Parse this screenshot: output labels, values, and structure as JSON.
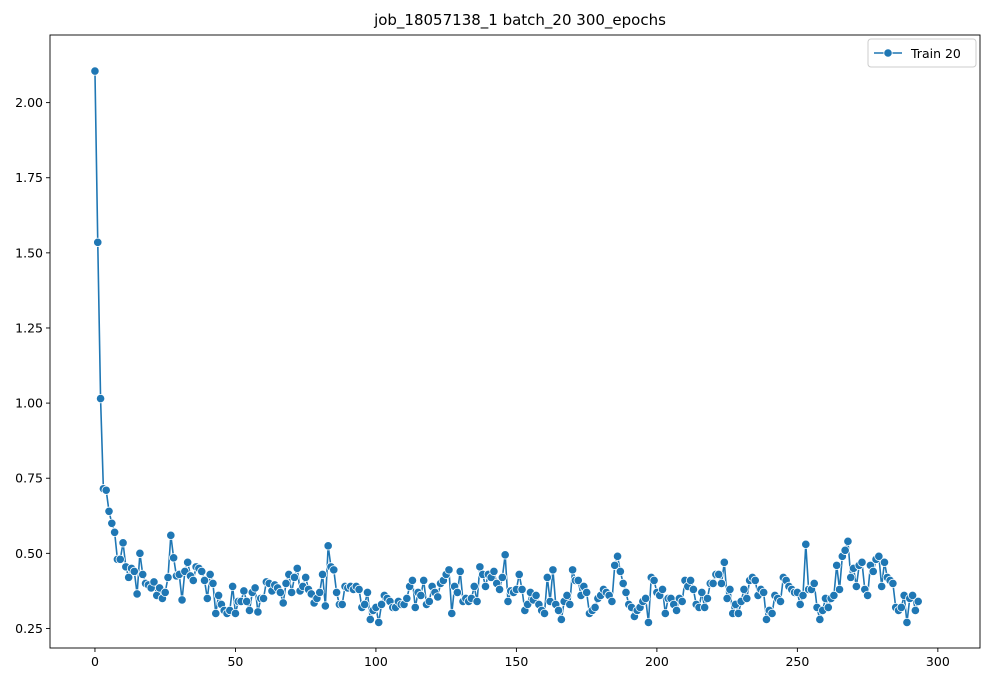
{
  "chart_data": {
    "type": "line",
    "title": "job_18057138_1 batch_20 300_epochs",
    "xlabel": "",
    "ylabel": "",
    "xlim": [
      -16,
      315
    ],
    "ylim": [
      0.185,
      2.225
    ],
    "x_ticks": [
      0,
      50,
      100,
      150,
      200,
      250,
      300
    ],
    "y_ticks": [
      0.25,
      0.5,
      0.75,
      1.0,
      1.25,
      1.5,
      1.75,
      2.0
    ],
    "y_tick_labels": [
      "0.25",
      "0.50",
      "0.75",
      "1.00",
      "1.25",
      "1.50",
      "1.75",
      "2.00"
    ],
    "grid": false,
    "legend_position": "top-right",
    "series": [
      {
        "name": "Train 20",
        "color": "#1f77b4",
        "marker": "circle",
        "values": [
          2.105,
          1.535,
          1.015,
          0.715,
          0.71,
          0.64,
          0.6,
          0.57,
          0.48,
          0.48,
          0.535,
          0.455,
          0.42,
          0.45,
          0.44,
          0.365,
          0.5,
          0.43,
          0.4,
          0.395,
          0.385,
          0.405,
          0.36,
          0.385,
          0.35,
          0.37,
          0.42,
          0.56,
          0.485,
          0.425,
          0.43,
          0.345,
          0.44,
          0.47,
          0.425,
          0.41,
          0.455,
          0.45,
          0.44,
          0.41,
          0.35,
          0.43,
          0.4,
          0.3,
          0.36,
          0.33,
          0.31,
          0.3,
          0.31,
          0.39,
          0.3,
          0.34,
          0.34,
          0.375,
          0.34,
          0.31,
          0.37,
          0.385,
          0.305,
          0.35,
          0.35,
          0.405,
          0.4,
          0.375,
          0.395,
          0.385,
          0.37,
          0.335,
          0.4,
          0.43,
          0.37,
          0.42,
          0.45,
          0.375,
          0.39,
          0.42,
          0.38,
          0.365,
          0.335,
          0.35,
          0.37,
          0.43,
          0.325,
          0.525,
          0.455,
          0.445,
          0.37,
          0.33,
          0.33,
          0.39,
          0.385,
          0.39,
          0.38,
          0.39,
          0.38,
          0.32,
          0.33,
          0.37,
          0.28,
          0.31,
          0.32,
          0.27,
          0.33,
          0.36,
          0.35,
          0.34,
          0.32,
          0.32,
          0.34,
          0.33,
          0.33,
          0.35,
          0.39,
          0.41,
          0.32,
          0.37,
          0.36,
          0.41,
          0.33,
          0.34,
          0.39,
          0.37,
          0.355,
          0.4,
          0.41,
          0.43,
          0.445,
          0.3,
          0.39,
          0.37,
          0.44,
          0.34,
          0.35,
          0.34,
          0.35,
          0.39,
          0.34,
          0.455,
          0.43,
          0.39,
          0.43,
          0.42,
          0.44,
          0.4,
          0.38,
          0.42,
          0.495,
          0.34,
          0.375,
          0.37,
          0.38,
          0.43,
          0.38,
          0.31,
          0.33,
          0.37,
          0.345,
          0.36,
          0.33,
          0.31,
          0.3,
          0.42,
          0.34,
          0.445,
          0.33,
          0.31,
          0.28,
          0.34,
          0.36,
          0.33,
          0.445,
          0.41,
          0.41,
          0.36,
          0.39,
          0.37,
          0.3,
          0.31,
          0.32,
          0.35,
          0.36,
          0.38,
          0.37,
          0.36,
          0.34,
          0.46,
          0.49,
          0.44,
          0.4,
          0.37,
          0.33,
          0.32,
          0.29,
          0.31,
          0.32,
          0.34,
          0.35,
          0.27,
          0.42,
          0.41,
          0.37,
          0.36,
          0.38,
          0.3,
          0.35,
          0.35,
          0.33,
          0.31,
          0.35,
          0.34,
          0.41,
          0.39,
          0.41,
          0.38,
          0.33,
          0.32,
          0.37,
          0.32,
          0.35,
          0.4,
          0.4,
          0.43,
          0.43,
          0.4,
          0.47,
          0.35,
          0.38,
          0.3,
          0.33,
          0.3,
          0.34,
          0.38,
          0.35,
          0.41,
          0.42,
          0.41,
          0.36,
          0.38,
          0.37,
          0.28,
          0.31,
          0.3,
          0.36,
          0.35,
          0.34,
          0.42,
          0.41,
          0.39,
          0.38,
          0.37,
          0.37,
          0.33,
          0.36,
          0.53,
          0.38,
          0.38,
          0.4,
          0.32,
          0.28,
          0.31,
          0.35,
          0.32,
          0.35,
          0.36,
          0.46,
          0.38,
          0.49,
          0.51,
          0.54,
          0.42,
          0.45,
          0.39,
          0.46,
          0.47,
          0.38,
          0.36,
          0.46,
          0.44,
          0.48,
          0.49,
          0.39,
          0.47,
          0.42,
          0.41,
          0.4,
          0.32,
          0.31,
          0.32,
          0.36,
          0.27,
          0.35,
          0.36,
          0.31,
          0.34
        ]
      }
    ]
  }
}
